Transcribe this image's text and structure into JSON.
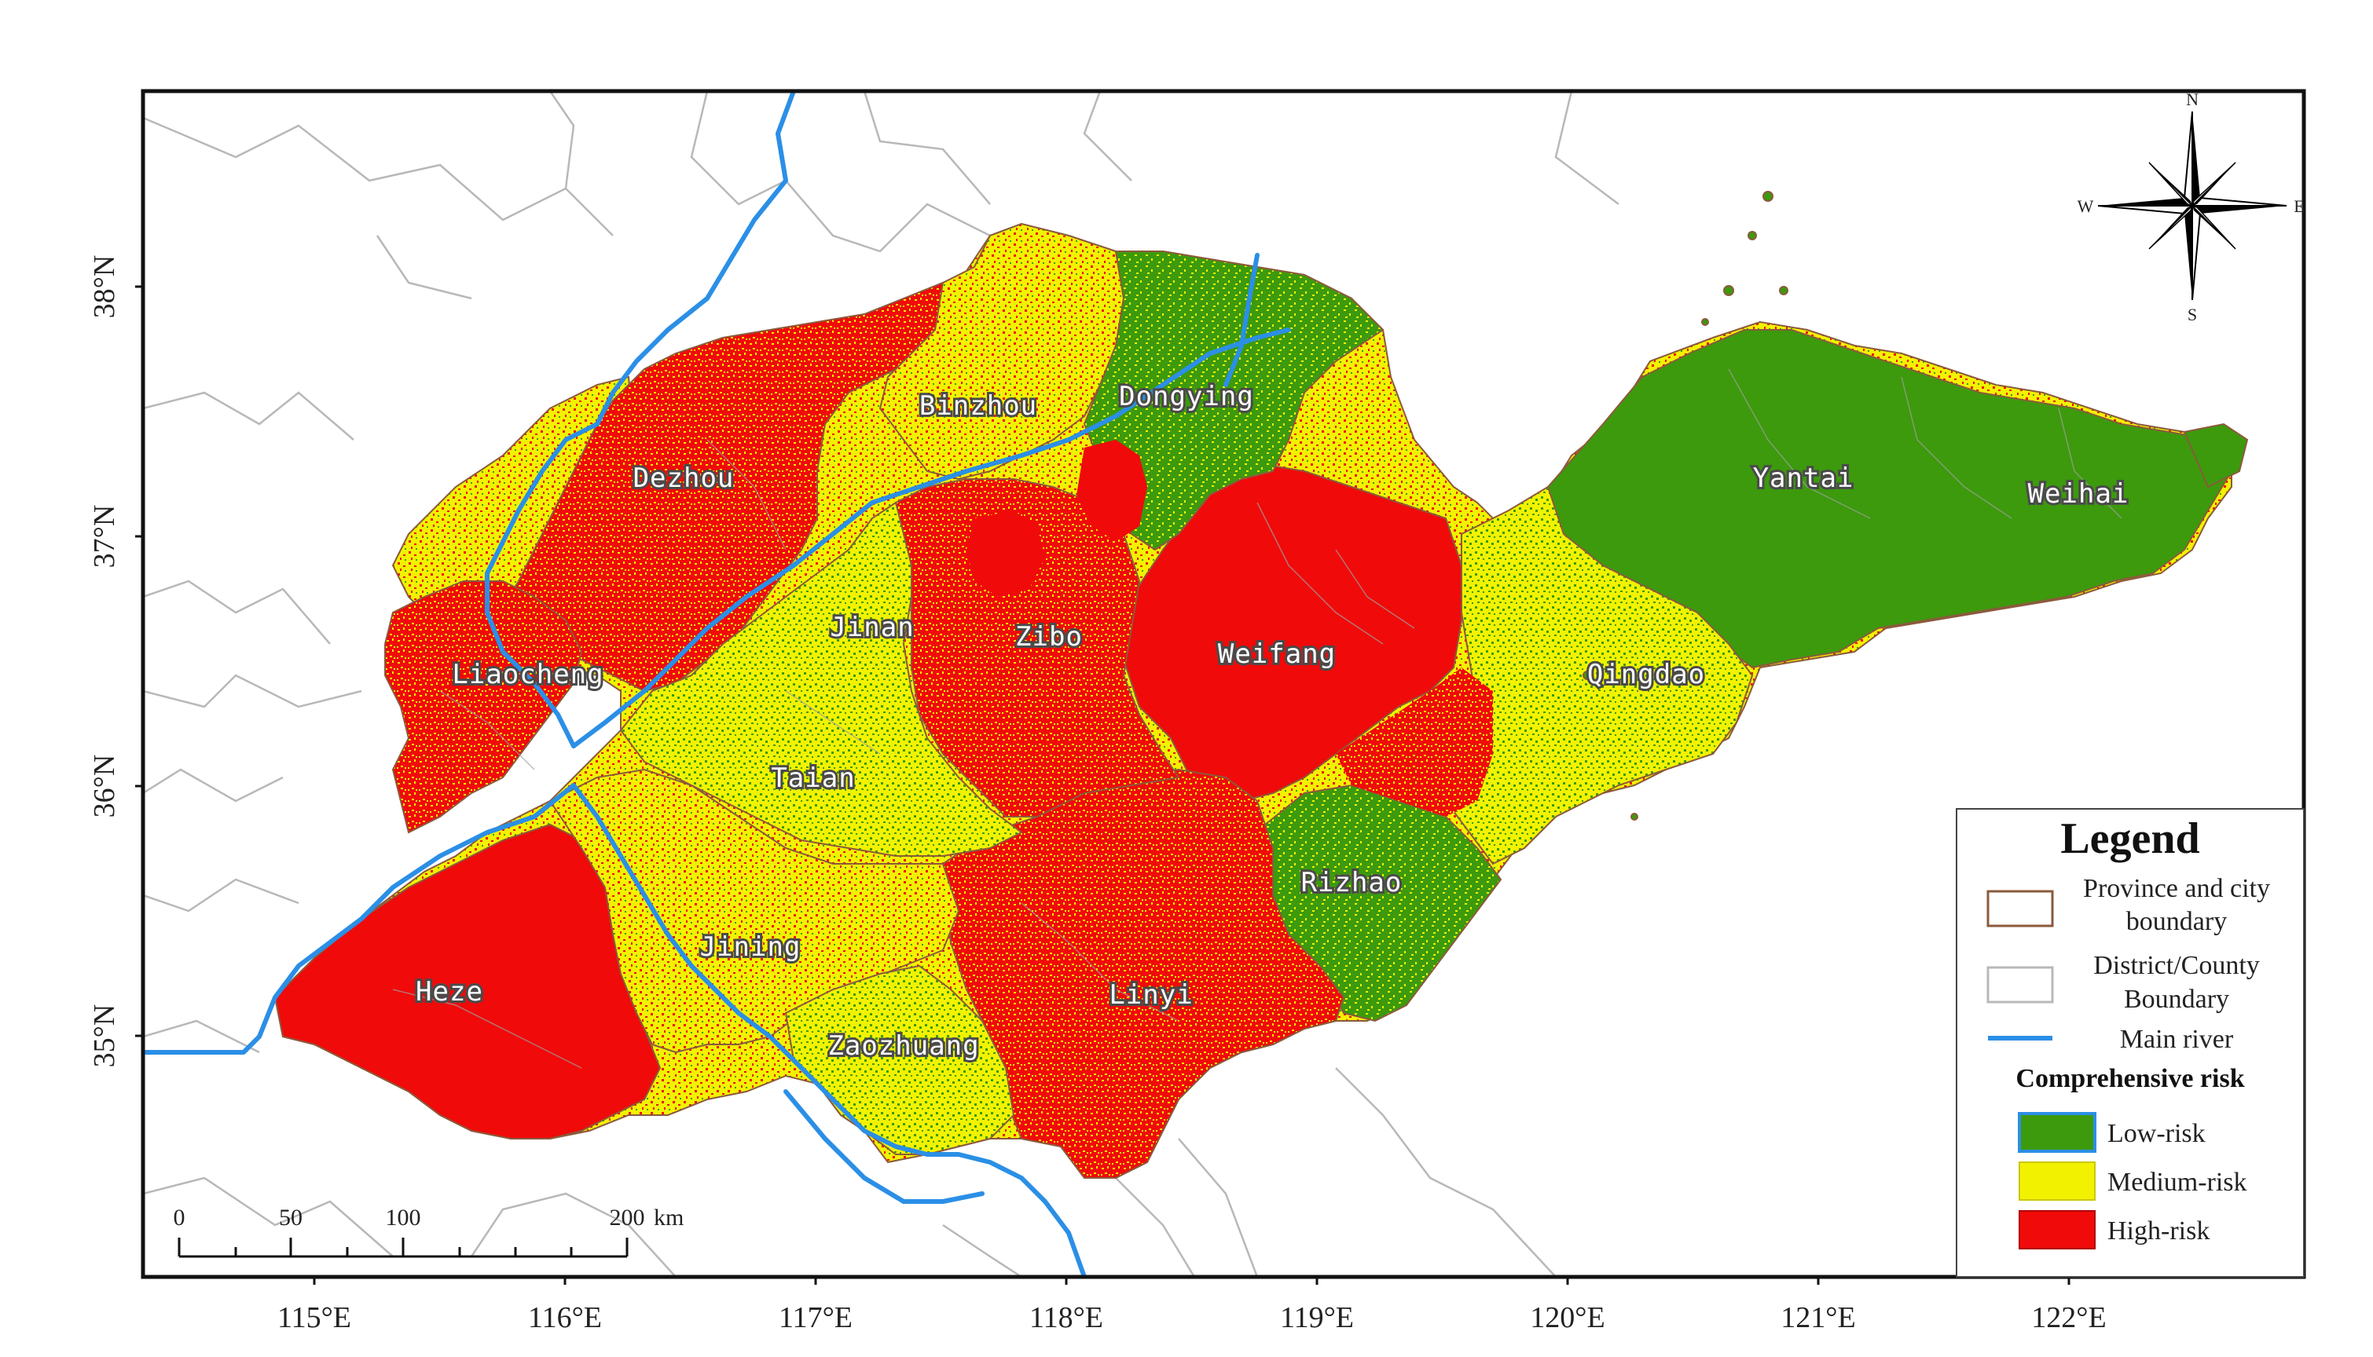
{
  "map": {
    "latitude_labels": [
      "38°N",
      "37°N",
      "36°N",
      "35°N"
    ],
    "longitude_labels": [
      "115°E",
      "116°E",
      "117°E",
      "118°E",
      "119°E",
      "120°E",
      "121°E",
      "122°E"
    ]
  },
  "cities": {
    "dezhou": "Dezhou",
    "binzhou": "Binzhou",
    "dongying": "Dongying",
    "yantai": "Yantai",
    "weihai": "Weihai",
    "liaocheng": "Liaocheng",
    "jinan": "Jinan",
    "zibo": "Zibo",
    "weifang": "Weifang",
    "qingdao": "Qingdao",
    "taian": "Taian",
    "rizhao": "Rizhao",
    "jining": "Jining",
    "heze": "Heze",
    "linyi": "Linyi",
    "zaozhuang": "Zaozhuang"
  },
  "compass": {
    "n": "N",
    "s": "S",
    "e": "E",
    "w": "W"
  },
  "scale_bar": {
    "ticks": [
      "0",
      "50",
      "100",
      "200"
    ],
    "unit": "km"
  },
  "legend": {
    "title": "Legend",
    "boundary_province_line1": "Province and city",
    "boundary_province_line2": "boundary",
    "boundary_district_line1": "District/County",
    "boundary_district_line2": "Boundary",
    "river": "Main river",
    "risk_heading": "Comprehensive risk",
    "low": "Low-risk",
    "medium": "Medium-risk",
    "high": "High-risk"
  },
  "colors": {
    "low": "#3c9a0c",
    "medium": "#f2f200",
    "high": "#f00a0a",
    "river": "#2b8fe6",
    "province_boundary": "#8b5a3c",
    "district_boundary": "#b8b8b8"
  }
}
